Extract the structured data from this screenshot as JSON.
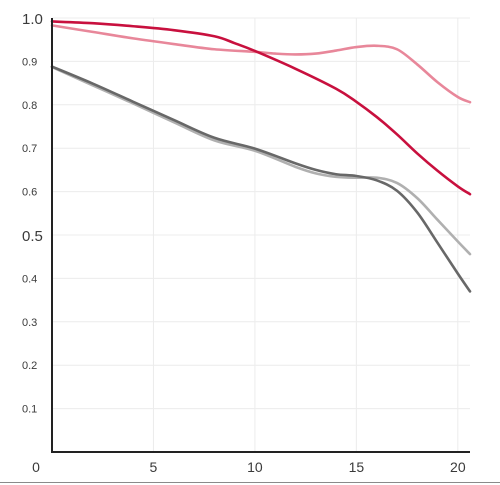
{
  "chart_data": {
    "type": "line",
    "title": "",
    "xlabel": "",
    "ylabel": "",
    "xlim": [
      0,
      20.6
    ],
    "ylim": [
      0,
      1.0
    ],
    "x_ticks": [
      {
        "value": 0,
        "label": "0"
      },
      {
        "value": 5,
        "label": "5"
      },
      {
        "value": 10,
        "label": "10"
      },
      {
        "value": 15,
        "label": "15"
      },
      {
        "value": 20,
        "label": "20"
      }
    ],
    "y_ticks": [
      {
        "value": 0.1,
        "label": "0.1",
        "emphasis": false
      },
      {
        "value": 0.2,
        "label": "0.2",
        "emphasis": false
      },
      {
        "value": 0.3,
        "label": "0.3",
        "emphasis": false
      },
      {
        "value": 0.4,
        "label": "0.4",
        "emphasis": false
      },
      {
        "value": 0.5,
        "label": "0.5",
        "emphasis": true
      },
      {
        "value": 0.6,
        "label": "0.6",
        "emphasis": false
      },
      {
        "value": 0.7,
        "label": "0.7",
        "emphasis": false
      },
      {
        "value": 0.8,
        "label": "0.8",
        "emphasis": false
      },
      {
        "value": 0.9,
        "label": "0.9",
        "emphasis": false
      },
      {
        "value": 1.0,
        "label": "1.0",
        "emphasis": true
      }
    ],
    "grid": true,
    "series": [
      {
        "color": "#e8879a",
        "x": [
          0,
          2,
          4,
          6,
          8,
          10,
          11,
          12,
          13,
          14,
          15,
          16,
          17,
          18,
          19,
          20,
          20.6
        ],
        "y": [
          0.983,
          0.968,
          0.953,
          0.94,
          0.928,
          0.922,
          0.918,
          0.916,
          0.918,
          0.925,
          0.933,
          0.936,
          0.928,
          0.893,
          0.852,
          0.818,
          0.806
        ]
      },
      {
        "color": "#c8103e",
        "x": [
          0,
          2,
          4,
          6,
          8,
          9,
          10,
          12,
          14,
          15,
          16,
          17,
          18,
          19,
          20,
          20.6
        ],
        "y": [
          0.992,
          0.988,
          0.981,
          0.972,
          0.958,
          0.942,
          0.924,
          0.883,
          0.837,
          0.807,
          0.772,
          0.732,
          0.688,
          0.648,
          0.612,
          0.594
        ]
      },
      {
        "color": "#b0b0b0",
        "x": [
          0,
          2,
          4,
          6,
          8,
          10,
          12,
          13,
          14,
          15,
          16,
          17,
          18,
          19,
          20,
          20.6
        ],
        "y": [
          0.887,
          0.845,
          0.803,
          0.76,
          0.718,
          0.694,
          0.657,
          0.642,
          0.634,
          0.632,
          0.632,
          0.62,
          0.585,
          0.535,
          0.485,
          0.456
        ]
      },
      {
        "color": "#686868",
        "x": [
          0,
          2,
          4,
          6,
          8,
          10,
          12,
          13,
          14,
          15,
          16,
          17,
          18,
          19,
          20,
          20.6
        ],
        "y": [
          0.888,
          0.849,
          0.807,
          0.765,
          0.724,
          0.699,
          0.665,
          0.65,
          0.64,
          0.636,
          0.626,
          0.602,
          0.552,
          0.482,
          0.411,
          0.37
        ]
      }
    ]
  }
}
